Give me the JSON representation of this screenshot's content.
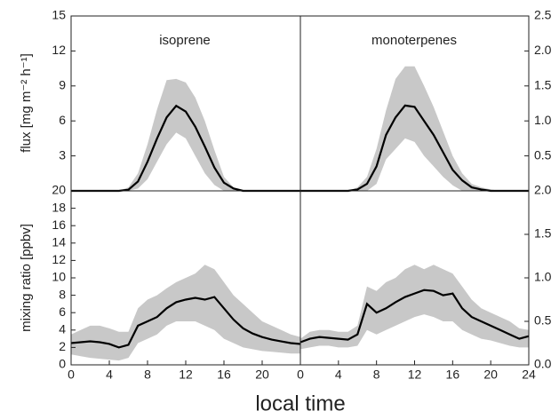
{
  "chart_data": [
    {
      "type": "line",
      "title": "isoprene",
      "ylabel": "flux [mg m⁻² h⁻¹]",
      "yaxis": "left",
      "color": "#000000",
      "band_color": "#c8c8c8",
      "x": [
        0,
        1,
        2,
        3,
        4,
        5,
        6,
        7,
        8,
        9,
        10,
        11,
        12,
        13,
        14,
        15,
        16,
        17,
        18,
        19,
        20,
        21,
        22,
        23,
        24
      ],
      "values": [
        0,
        0,
        0,
        0,
        0,
        0,
        0.1,
        0.8,
        2.5,
        4.5,
        6.3,
        7.3,
        6.8,
        5.5,
        3.8,
        2.0,
        0.7,
        0.2,
        0,
        0,
        0,
        0,
        0,
        0,
        0
      ],
      "upper": [
        0,
        0,
        0,
        0,
        0,
        0,
        0.3,
        1.5,
        4,
        7,
        9.5,
        9.6,
        9.3,
        8,
        6,
        3.5,
        1.2,
        0.3,
        0,
        0,
        0,
        0,
        0,
        0,
        0
      ],
      "lower": [
        0,
        0,
        0,
        0,
        0,
        0,
        0,
        0.2,
        1,
        2.5,
        4,
        5,
        4.5,
        3,
        1.5,
        0.5,
        0,
        0,
        0,
        0,
        0,
        0,
        0,
        0,
        0
      ],
      "xlim": [
        0,
        24
      ],
      "ylim": [
        0,
        15
      ],
      "yticks": [
        3,
        6,
        9,
        12,
        15
      ]
    },
    {
      "type": "line",
      "title": "monoterpenes",
      "yaxis": "right",
      "color": "#000000",
      "band_color": "#c8c8c8",
      "x": [
        0,
        1,
        2,
        3,
        4,
        5,
        6,
        7,
        8,
        9,
        10,
        11,
        12,
        13,
        14,
        15,
        16,
        17,
        18,
        19,
        20,
        21,
        22,
        23,
        24
      ],
      "values": [
        0,
        0,
        0,
        0,
        0,
        0,
        0.02,
        0.1,
        0.35,
        0.8,
        1.05,
        1.22,
        1.2,
        1.0,
        0.8,
        0.55,
        0.3,
        0.15,
        0.05,
        0.02,
        0,
        0,
        0,
        0,
        0
      ],
      "upper": [
        0,
        0,
        0,
        0,
        0,
        0,
        0.05,
        0.2,
        0.6,
        1.15,
        1.6,
        1.78,
        1.78,
        1.5,
        1.2,
        0.85,
        0.5,
        0.25,
        0.1,
        0.05,
        0.02,
        0,
        0,
        0,
        0
      ],
      "lower": [
        0,
        0,
        0,
        0,
        0,
        0,
        0,
        0,
        0.1,
        0.45,
        0.6,
        0.75,
        0.7,
        0.5,
        0.35,
        0.2,
        0.08,
        0,
        0,
        0,
        0,
        0,
        0,
        0,
        0
      ],
      "xlim": [
        0,
        24
      ],
      "ylim": [
        0,
        2.5
      ],
      "yticks": [
        0.5,
        {
          "value": 1.0,
          "label": "1.0"
        },
        1.5,
        {
          "value": 2.0,
          "label": "2.0"
        },
        2.5
      ]
    },
    {
      "type": "line",
      "ylabel": "mixing ratio [ppbv]",
      "xlabel": "local time",
      "yaxis": "left",
      "color": "#000000",
      "band_color": "#c8c8c8",
      "x": [
        0,
        1,
        2,
        3,
        4,
        5,
        6,
        7,
        8,
        9,
        10,
        11,
        12,
        13,
        14,
        15,
        16,
        17,
        18,
        19,
        20,
        21,
        22,
        23,
        24
      ],
      "values": [
        2.5,
        2.6,
        2.7,
        2.6,
        2.4,
        2.0,
        2.3,
        4.5,
        5.0,
        5.5,
        6.5,
        7.2,
        7.5,
        7.7,
        7.5,
        7.8,
        6.5,
        5.2,
        4.2,
        3.6,
        3.2,
        2.9,
        2.7,
        2.5,
        2.4
      ],
      "upper": [
        3.5,
        4,
        4.5,
        4.5,
        4.2,
        3.8,
        3.8,
        6.5,
        7.5,
        8,
        8.8,
        9.5,
        10,
        10.5,
        11.5,
        11,
        9.5,
        8,
        7,
        6,
        5,
        4.5,
        4,
        3.5,
        3.2
      ],
      "lower": [
        1.2,
        1,
        0.8,
        0.7,
        0.6,
        0.5,
        0.8,
        2.5,
        3,
        3.5,
        4.5,
        5,
        5,
        5,
        4.5,
        4,
        3,
        2.5,
        2,
        1.8,
        1.6,
        1.5,
        1.4,
        1.3,
        1.3
      ],
      "xlim": [
        0,
        24
      ],
      "xticks": [
        0,
        4,
        8,
        12,
        16,
        20
      ],
      "ylim": [
        0,
        20
      ],
      "yticks": [
        0,
        2,
        4,
        6,
        8,
        10,
        12,
        14,
        16,
        18,
        20
      ]
    },
    {
      "type": "line",
      "yaxis": "right",
      "color": "#000000",
      "band_color": "#c8c8c8",
      "x": [
        0,
        1,
        2,
        3,
        4,
        5,
        6,
        7,
        8,
        9,
        10,
        11,
        12,
        13,
        14,
        15,
        16,
        17,
        18,
        19,
        20,
        21,
        22,
        23,
        24
      ],
      "values": [
        0.26,
        0.3,
        0.32,
        0.31,
        0.3,
        0.29,
        0.35,
        0.7,
        0.6,
        0.65,
        0.72,
        0.78,
        0.82,
        0.86,
        0.85,
        0.8,
        0.82,
        0.65,
        0.55,
        0.5,
        0.45,
        0.4,
        0.35,
        0.3,
        0.33
      ],
      "upper": [
        0.3,
        0.38,
        0.4,
        0.4,
        0.38,
        0.38,
        0.45,
        0.9,
        0.85,
        0.95,
        1.0,
        1.1,
        1.15,
        1.1,
        1.15,
        1.1,
        1.05,
        0.9,
        0.75,
        0.65,
        0.6,
        0.55,
        0.5,
        0.42,
        0.4
      ],
      "lower": [
        0.18,
        0.2,
        0.22,
        0.22,
        0.2,
        0.2,
        0.22,
        0.4,
        0.35,
        0.4,
        0.45,
        0.5,
        0.55,
        0.58,
        0.55,
        0.5,
        0.5,
        0.4,
        0.35,
        0.3,
        0.28,
        0.25,
        0.22,
        0.2,
        0.2
      ],
      "xlim": [
        0,
        24
      ],
      "xticks": [
        0,
        4,
        8,
        12,
        16,
        20,
        24
      ],
      "ylim": [
        0,
        2
      ],
      "yticks": [
        {
          "value": 0.0,
          "label": "0.0"
        },
        0.5,
        {
          "value": 1.0,
          "label": "1.0"
        },
        1.5,
        {
          "value": 2.0,
          "label": "2.0"
        }
      ]
    }
  ]
}
